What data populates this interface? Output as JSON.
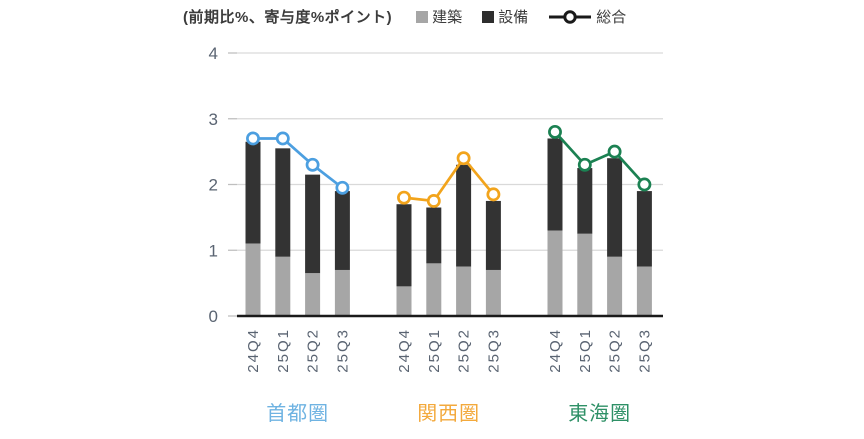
{
  "chart": {
    "title": "(前期比%、寄与度%ポイント)",
    "legend": [
      {
        "label": "建築",
        "type": "square",
        "color": "#A6A6A6"
      },
      {
        "label": "設備",
        "type": "square",
        "color": "#2E2E2E"
      },
      {
        "label": "総合",
        "type": "line-marker",
        "color": "#1A1A1A"
      }
    ]
  },
  "chart_data": {
    "type": "bar",
    "subtype": "stacked-bars-with-line-overlay",
    "title": "(前期比%、寄与度%ポイント)",
    "categories": [
      "24Q4",
      "25Q1",
      "25Q2",
      "25Q3"
    ],
    "ylim": [
      0,
      4
    ],
    "yticks": [
      0,
      1,
      2,
      3,
      4
    ],
    "grid": true,
    "legend_position": "top",
    "bar_series_names": [
      "建築",
      "設備"
    ],
    "line_series_name": "総合",
    "bar_colors": {
      "building": "#A6A6A6",
      "equipment": "#333333"
    },
    "axis_colors": {
      "gridline": "#D9D9D9",
      "axis": "#1A1A1A",
      "tick_label": "#5A6472"
    },
    "groups": [
      {
        "label": "首都圏",
        "label_color": "#6FB3E2",
        "line_color": "#4C9FE0",
        "building": [
          1.1,
          0.9,
          0.65,
          0.7
        ],
        "equipment": [
          1.55,
          1.65,
          1.5,
          1.2
        ],
        "total": [
          2.7,
          2.7,
          2.3,
          1.95
        ]
      },
      {
        "label": "関西圏",
        "label_color": "#F3A93C",
        "line_color": "#F2A41C",
        "building": [
          0.45,
          0.8,
          0.75,
          0.7
        ],
        "equipment": [
          1.25,
          0.85,
          1.55,
          1.05
        ],
        "total": [
          1.8,
          1.75,
          2.4,
          1.85
        ]
      },
      {
        "label": "東海圏",
        "label_color": "#2E9066",
        "line_color": "#1B8152",
        "building": [
          1.3,
          1.25,
          0.9,
          0.75
        ],
        "equipment": [
          1.4,
          1.0,
          1.5,
          1.15
        ],
        "total": [
          2.8,
          2.3,
          2.5,
          2.0
        ]
      }
    ]
  }
}
